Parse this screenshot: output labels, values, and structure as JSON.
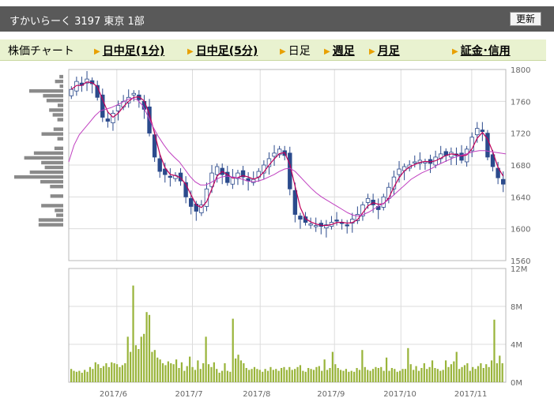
{
  "header": {
    "title": "すかいらーく 3197 東京 1部",
    "refresh_label": "更新"
  },
  "nav": {
    "label": "株価チャート",
    "items": [
      {
        "label": "日中足(1分)",
        "link": true
      },
      {
        "label": "日中足(5分)",
        "link": true
      },
      {
        "label": "日足",
        "link": false
      },
      {
        "label": "週足",
        "link": true
      },
      {
        "label": "月足",
        "link": true
      },
      {
        "label": "証金･信用",
        "link": true
      }
    ]
  },
  "colors": {
    "up": "#ffffff",
    "down": "#2b4a8c",
    "ma_short": "#c0005a",
    "ma_long": "#c040c0",
    "volume": "#99b43a",
    "profile": "#8a8a8a"
  },
  "chart_data": [
    {
      "type": "candlestick",
      "ylim": [
        1560,
        1800
      ],
      "y_ticks": [
        "1800",
        "1760",
        "1720",
        "1680",
        "1640",
        "1600",
        "1560"
      ],
      "x_ticks": [
        "2017/6",
        "2017/7",
        "2017/8",
        "2017/9",
        "2017/10",
        "2017/11"
      ],
      "series": [
        {
          "values": [
            1775,
            1785,
            1780,
            1788,
            1782,
            1765,
            1740,
            1735,
            1745,
            1755,
            1760,
            1765,
            1770,
            1762,
            1750,
            1720,
            1690,
            1672,
            1668,
            1665,
            1667,
            1660,
            1640,
            1628,
            1622,
            1630,
            1650,
            1670,
            1678,
            1668,
            1658,
            1665,
            1670,
            1665,
            1660,
            1662,
            1672,
            1680,
            1688,
            1695,
            1700,
            1692,
            1650,
            1618,
            1612,
            1608,
            1606,
            1604,
            1603,
            1605,
            1608,
            1610,
            1607,
            1604,
            1612,
            1618,
            1630,
            1638,
            1630,
            1624,
            1640,
            1652,
            1665,
            1675,
            1678,
            1680,
            1684,
            1686,
            1684,
            1682,
            1690,
            1694,
            1692,
            1696,
            1692,
            1686,
            1700,
            1715,
            1726,
            1722,
            1690,
            1678,
            1664,
            1656
          ]
        },
        {
          "name": "",
          "values": [
            1684,
            1705,
            1718,
            1726,
            1734,
            1742,
            1748,
            1750,
            1752,
            1755,
            1758,
            1762,
            1764,
            1762,
            1755,
            1742,
            1728,
            1716,
            1706,
            1697,
            1690,
            1684,
            1675,
            1666,
            1659,
            1655,
            1655,
            1658,
            1662,
            1665,
            1666,
            1665,
            1664,
            1662,
            1660,
            1659,
            1660,
            1662,
            1665,
            1668,
            1672,
            1675,
            1676,
            1672,
            1665,
            1658,
            1651,
            1645,
            1640,
            1636,
            1632,
            1628,
            1624,
            1620,
            1617,
            1616,
            1618,
            1621,
            1625,
            1629,
            1633,
            1638,
            1644,
            1650,
            1656,
            1662,
            1666,
            1670,
            1673,
            1676,
            1680,
            1683,
            1686,
            1689,
            1691,
            1693,
            1695,
            1697,
            1698,
            1698,
            1697,
            1696,
            1695,
            1694
          ]
        }
      ]
    },
    {
      "type": "bar",
      "ylim": [
        0,
        12
      ],
      "y_ticks": [
        "12M",
        "8M",
        "4M",
        "0M"
      ],
      "x_ticks": [
        "2017/6",
        "2017/7",
        "2017/8",
        "2017/9",
        "2017/10",
        "2017/11"
      ],
      "values": [
        1.4,
        1.2,
        1.1,
        1.2,
        1.0,
        1.3,
        1.1,
        1.6,
        1.4,
        2.1,
        1.9,
        1.5,
        1.7,
        2.0,
        1.6,
        2.1,
        2.0,
        1.9,
        1.6,
        1.8,
        2.0,
        4.8,
        3.2,
        10.2,
        3.9,
        3.5,
        4.8,
        5.1,
        7.4,
        7.1,
        3.2,
        3.4,
        2.6,
        2.4,
        2.0,
        1.8,
        2.2,
        2.0,
        1.9,
        2.4,
        1.5,
        2.1,
        1.2,
        1.7,
        2.7,
        1.6,
        1.3,
        2.3,
        1.4,
        2.0,
        4.8,
        1.9,
        1.6,
        2.1,
        1.4,
        1.0,
        1.2,
        2.0,
        1.2,
        1.1,
        6.7,
        2.5,
        2.9,
        2.3,
        2.0,
        1.5,
        1.3,
        1.4,
        1.6,
        1.4,
        1.3,
        1.1,
        1.4,
        1.2,
        1.6,
        1.3,
        1.4,
        1.2,
        1.5,
        1.6,
        1.3,
        1.6,
        1.3,
        1.4,
        1.6,
        1.8,
        1.2,
        1.1,
        1.5,
        1.4,
        1.3,
        1.6,
        1.7,
        1.2,
        2.4,
        1.3,
        1.5,
        3.2,
        1.9,
        1.5,
        1.3,
        1.2,
        1.4,
        1.1,
        1.2,
        1.1,
        1.5,
        1.3,
        3.4,
        1.6,
        1.3,
        1.2,
        1.4,
        1.6,
        1.5,
        1.6,
        1.2,
        2.6,
        1.2,
        1.5,
        1.4,
        1.1,
        1.2,
        1.4,
        1.4,
        3.6,
        1.9,
        1.3,
        1.7,
        1.2,
        1.5,
        2.0,
        1.4,
        1.6,
        2.3,
        1.5,
        1.4,
        1.2,
        1.3,
        2.3,
        1.6,
        1.9,
        2.2,
        3.2,
        1.4,
        1.6,
        1.8,
        2.0,
        1.2,
        1.6,
        1.4,
        1.7,
        2.0,
        1.5,
        1.9,
        1.6,
        2.3,
        6.6,
        2.0,
        2.8,
        2.0
      ]
    }
  ]
}
